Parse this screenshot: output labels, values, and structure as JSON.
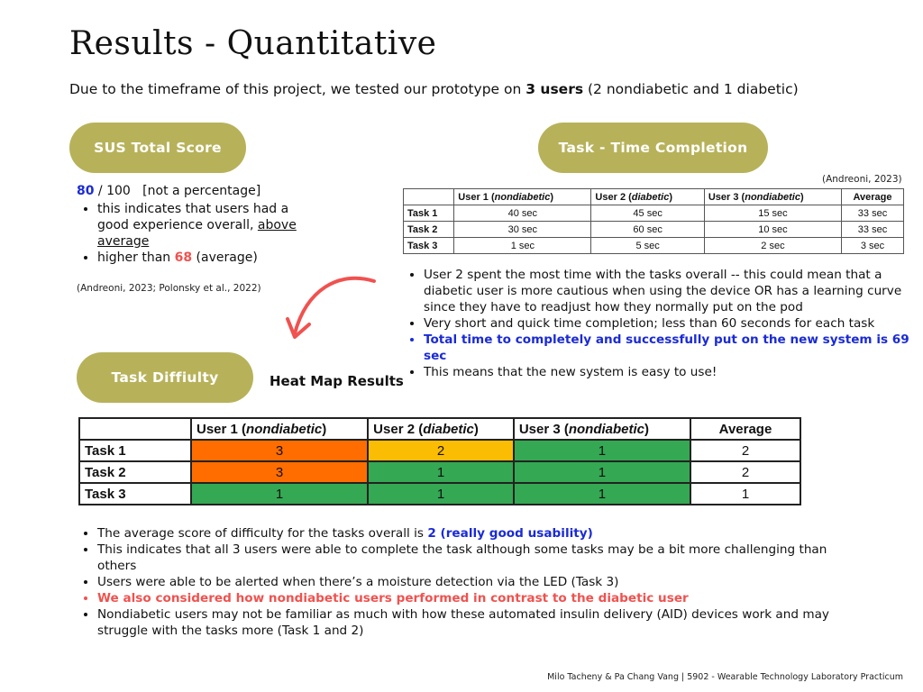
{
  "title": "Results - Quantitative",
  "intro": {
    "before": "Due to the timeframe of this project, we tested our prototype on ",
    "bold": "3 users",
    "after": " (2 nondiabetic and 1 diabetic)"
  },
  "pills": {
    "sus": "SUS Total Score",
    "time": "Task - Time Completion",
    "difficulty": "Task Diffiulty"
  },
  "sus": {
    "score": "80",
    "score_rest": " / 100   [not a percentage]",
    "bullet1_a": "this indicates that users had a good experience overall, ",
    "bullet1_b": "above average",
    "bullet2_a": "higher than ",
    "bullet2_num": "68",
    "bullet2_b": " (average)",
    "citation": "(Andreoni, 2023; Polonsky et al., 2022)"
  },
  "time_table": {
    "citation": "(Andreoni, 2023)",
    "headers": [
      {
        "pre": "User 1 (",
        "em": "nondiabetic",
        "post": ")"
      },
      {
        "pre": "User 2 (",
        "em": "diabetic",
        "post": ")"
      },
      {
        "pre": "User 3 (",
        "em": "nondiabetic",
        "post": ")"
      },
      {
        "pre": "Average",
        "em": "",
        "post": ""
      }
    ],
    "rows": [
      {
        "label": "Task 1",
        "cells": [
          "40 sec",
          "45 sec",
          "15 sec",
          "33 sec"
        ]
      },
      {
        "label": "Task 2",
        "cells": [
          "30 sec",
          "60 sec",
          "10 sec",
          "33 sec"
        ]
      },
      {
        "label": "Task 3",
        "cells": [
          "1 sec",
          "5 sec",
          "2 sec",
          "3 sec"
        ]
      }
    ]
  },
  "time_notes": [
    "User 2 spent the most time with the tasks overall -- this could mean that a diabetic user is more cautious when using the device OR has a learning curve since they have to readjust how they normally put on the pod",
    "Very short and quick time completion; less than 60 seconds for each task",
    "Total time to completely and successfully put on the new system  is 69 sec",
    "This means that the new system is easy to use!"
  ],
  "heat_label": "Heat Map Results",
  "heat_table": {
    "headers": [
      {
        "pre": "User 1 (",
        "em": "nondiabetic",
        "post": ")"
      },
      {
        "pre": "User 2 (",
        "em": "diabetic",
        "post": ")"
      },
      {
        "pre": "User 3 (",
        "em": "nondiabetic",
        "post": ")"
      },
      {
        "pre": "Average",
        "em": "",
        "post": ""
      }
    ],
    "rows": [
      {
        "label": "Task 1",
        "cells": [
          "3",
          "2",
          "1",
          "2"
        ]
      },
      {
        "label": "Task 2",
        "cells": [
          "3",
          "1",
          "1",
          "2"
        ]
      },
      {
        "label": "Task 3",
        "cells": [
          "1",
          "1",
          "1",
          "1"
        ]
      }
    ],
    "colors": {
      "3": "#ff6d01",
      "2": "#fbbc04",
      "1": "#34a853"
    }
  },
  "bottom_notes": {
    "b1_a": "The average score of difficulty for the tasks overall is ",
    "b1_b": "2 (really good usability)",
    "b2": "This indicates that all 3 users were able to complete the task although some tasks may be a bit more challenging than others",
    "b3": "Users were able to be alerted when there’s a moisture detection via the LED (Task 3)",
    "b4": "We also considered how nondiabetic users performed in contrast to the diabetic user",
    "b5": "Nondiabetic users may not be familiar as much with how these automated insulin delivery (AID) devices work and may struggle with the tasks more  (Task 1 and 2)"
  },
  "footer": "Milo Tacheny & Pa Chang Vang  | 5902 - Wearable Technology Laboratory Practicum",
  "colors": {
    "pill": "#b7b25a",
    "highlight_blue": "#1a2bd6",
    "highlight_red": "#f0524f",
    "arrow": "#f0524f"
  }
}
